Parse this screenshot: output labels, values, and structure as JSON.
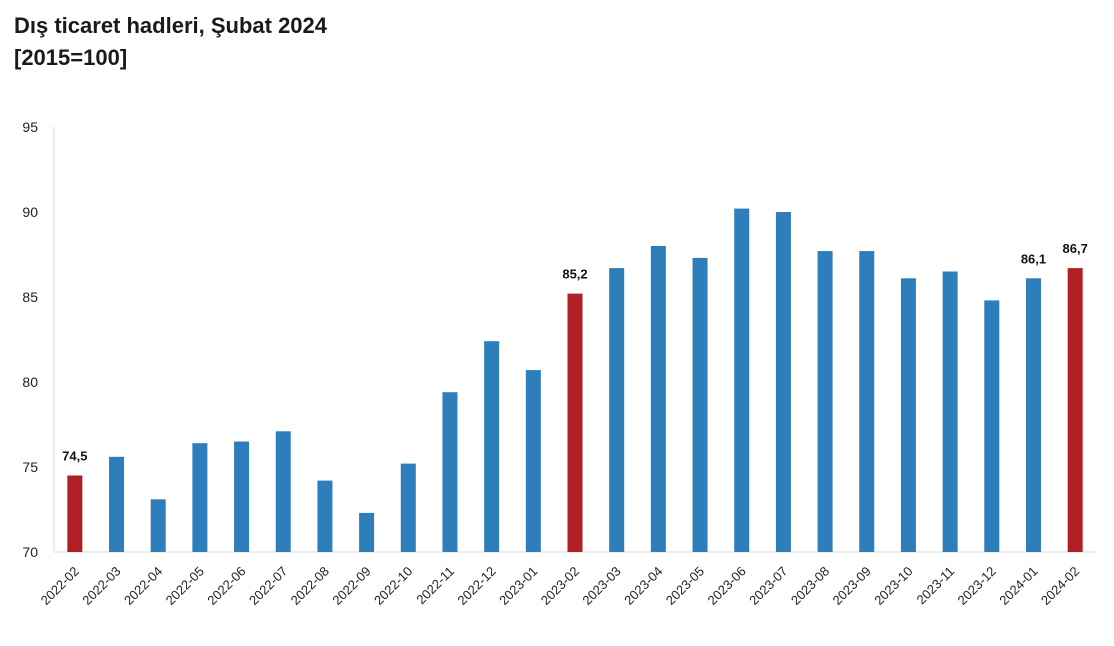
{
  "chart_data": {
    "type": "bar",
    "title": "Dış ticaret hadleri, Şubat 2024",
    "subtitle": "[2015=100]",
    "xlabel": "",
    "ylabel": "",
    "ylim": [
      70,
      95
    ],
    "yticks": [
      70,
      75,
      80,
      85,
      90,
      95
    ],
    "grid": false,
    "categories": [
      "2022-02",
      "2022-03",
      "2022-04",
      "2022-05",
      "2022-06",
      "2022-07",
      "2022-08",
      "2022-09",
      "2022-10",
      "2022-11",
      "2022-12",
      "2023-01",
      "2023-02",
      "2023-03",
      "2023-04",
      "2023-05",
      "2023-06",
      "2023-07",
      "2023-08",
      "2023-09",
      "2023-10",
      "2023-11",
      "2023-12",
      "2024-01",
      "2024-02"
    ],
    "values": [
      74.5,
      75.6,
      73.1,
      76.4,
      76.5,
      77.1,
      74.2,
      72.3,
      75.2,
      79.4,
      82.4,
      80.7,
      85.2,
      86.7,
      88.0,
      87.3,
      90.2,
      90.0,
      87.7,
      87.7,
      86.1,
      86.5,
      84.8,
      86.1,
      86.7
    ],
    "highlighted_categories": [
      "2022-02",
      "2023-02",
      "2024-02"
    ],
    "data_labels": [
      {
        "category": "2022-02",
        "text": "74,5"
      },
      {
        "category": "2023-02",
        "text": "85,2"
      },
      {
        "category": "2024-01",
        "text": "86,1"
      },
      {
        "category": "2024-02",
        "text": "86,7"
      }
    ],
    "colors": {
      "bar": "#2E7EBB",
      "highlight": "#B01F24",
      "axis": "#d9d9d9"
    }
  }
}
